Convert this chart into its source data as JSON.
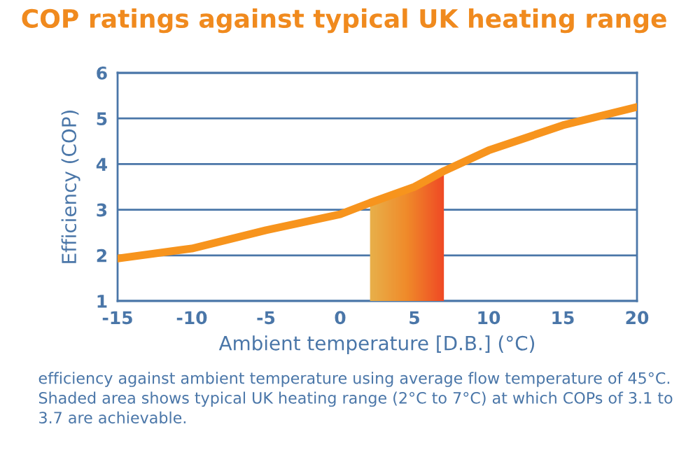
{
  "chart_data": {
    "type": "line",
    "title": "COP ratings against typical UK heating range",
    "xlabel": "Ambient temperature [D.B.] (°C)",
    "ylabel": "Efficiency (COP)",
    "x": [
      -15,
      -10,
      -5,
      0,
      2,
      5,
      7,
      10,
      15,
      20
    ],
    "series": [
      {
        "color": "#f7941d",
        "values": [
          1.93,
          2.15,
          2.55,
          2.9,
          3.15,
          3.5,
          3.85,
          4.3,
          4.85,
          5.25
        ]
      }
    ],
    "xlim": [
      -15,
      20
    ],
    "xticks": [
      -15,
      -10,
      -5,
      0,
      5,
      10,
      15,
      20
    ],
    "ylim": [
      1,
      6
    ],
    "yticks": [
      1,
      2,
      3,
      4,
      5,
      6
    ],
    "grid": "y",
    "marker": "none",
    "line_style": "solid",
    "bands": [
      {
        "axis": "x",
        "from": 2,
        "to": 7,
        "color": "#ef4a25"
      }
    ],
    "annotations": [
      "efficiency against ambient temperature using average flow temperature of 45°C. Shaded area shows typical UK heating range (2°C to 7°C) at which COPs of 3.1 to 3.7 are achievable."
    ]
  }
}
